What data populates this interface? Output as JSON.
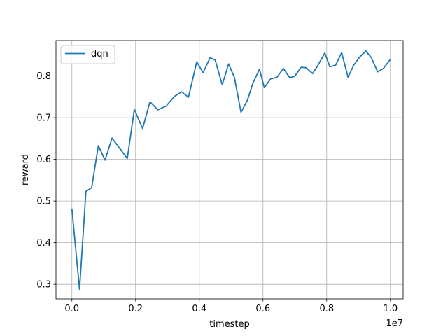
{
  "chart_data": {
    "type": "line",
    "title": "",
    "xlabel": "timestep",
    "ylabel": "reward",
    "x_offset_label": "1e7",
    "xlim": [
      -0.05,
      1.04
    ],
    "ylim": [
      0.265,
      0.885
    ],
    "x_unit_multiplier": 10000000,
    "x_ticks": [
      0.0,
      0.2,
      0.4,
      0.6,
      0.8,
      1.0
    ],
    "x_tick_labels": [
      "0.0",
      "0.2",
      "0.4",
      "0.6",
      "0.8",
      "1.0"
    ],
    "y_ticks": [
      0.3,
      0.4,
      0.5,
      0.6,
      0.7,
      0.8
    ],
    "y_tick_labels": [
      "0.3",
      "0.4",
      "0.5",
      "0.6",
      "0.7",
      "0.8"
    ],
    "grid": true,
    "legend_position": "top-left",
    "series": [
      {
        "name": "dqn",
        "color": "#1f77b4",
        "x": [
          0.0,
          0.024,
          0.044,
          0.062,
          0.083,
          0.104,
          0.126,
          0.174,
          0.196,
          0.222,
          0.245,
          0.27,
          0.296,
          0.322,
          0.344,
          0.366,
          0.392,
          0.412,
          0.434,
          0.45,
          0.472,
          0.492,
          0.51,
          0.531,
          0.551,
          0.569,
          0.589,
          0.604,
          0.624,
          0.644,
          0.664,
          0.684,
          0.699,
          0.72,
          0.735,
          0.756,
          0.772,
          0.794,
          0.81,
          0.828,
          0.847,
          0.867,
          0.885,
          0.903,
          0.923,
          0.94,
          0.96,
          0.978,
          1.0
        ],
        "values": [
          0.481,
          0.288,
          0.523,
          0.532,
          0.633,
          0.598,
          0.651,
          0.602,
          0.72,
          0.674,
          0.738,
          0.719,
          0.728,
          0.751,
          0.762,
          0.749,
          0.834,
          0.808,
          0.844,
          0.838,
          0.779,
          0.829,
          0.797,
          0.713,
          0.742,
          0.784,
          0.816,
          0.772,
          0.793,
          0.797,
          0.818,
          0.796,
          0.799,
          0.821,
          0.82,
          0.806,
          0.825,
          0.855,
          0.822,
          0.826,
          0.856,
          0.797,
          0.826,
          0.845,
          0.86,
          0.844,
          0.81,
          0.818,
          0.84
        ]
      }
    ]
  }
}
